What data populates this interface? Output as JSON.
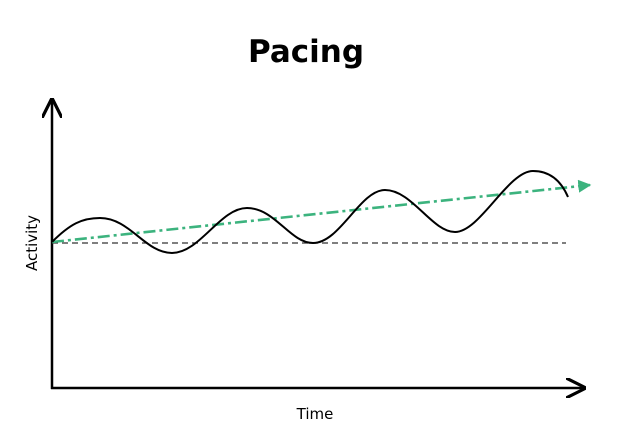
{
  "title": "Pacing",
  "x_axis_label": "Time",
  "y_axis_label": "Activity",
  "colors": {
    "trend": "#3cb37e",
    "activity": "#000000",
    "baseline": "#333333"
  }
}
